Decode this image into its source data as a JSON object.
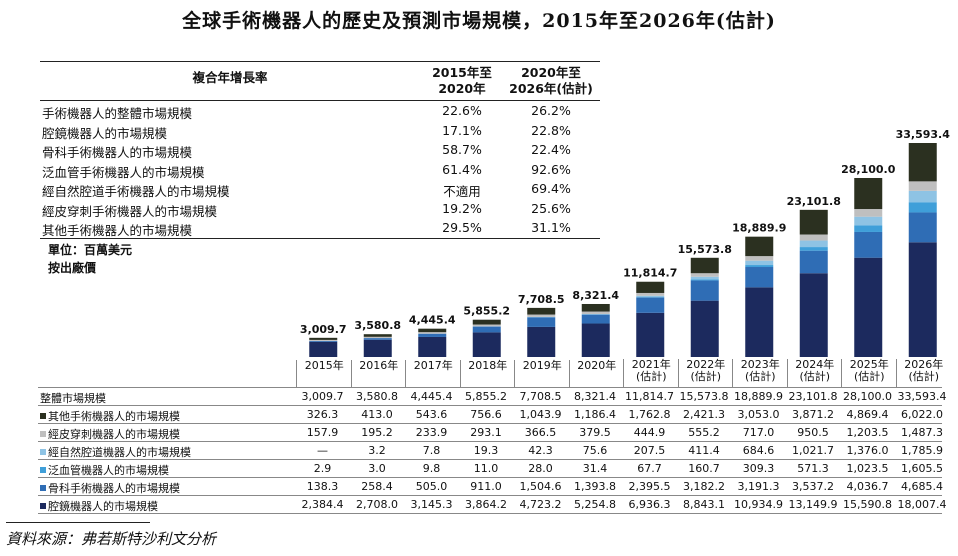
{
  "title": "全球手術機器人的歷史及預測市場規模，2015年至2026年(估計)",
  "cagr": {
    "header": "複合年增長率",
    "col1": [
      "2015年至",
      "2020年"
    ],
    "col2": [
      "2020年至",
      "2026年(估計)"
    ],
    "rows": [
      {
        "name": "手術機器人的整體市場規模",
        "a": "22.6%",
        "b": "26.2%"
      },
      {
        "name": "腔鏡機器人的市場規模",
        "a": "17.1%",
        "b": "22.8%"
      },
      {
        "name": "骨科手術機器人的市場規模",
        "a": "58.7%",
        "b": "22.4%"
      },
      {
        "name": "泛血管手術機器人的市場規模",
        "a": "61.4%",
        "b": "92.6%"
      },
      {
        "name": "經自然腔道手術機器人的市場規模",
        "a": "不適用",
        "b": "69.4%"
      },
      {
        "name": "經皮穿刺手術機器人的市場規模",
        "a": "19.2%",
        "b": "25.6%"
      },
      {
        "name": "其他手術機器人的市場規模",
        "a": "29.5%",
        "b": "31.1%"
      }
    ]
  },
  "unit": "單位：百萬美元",
  "price_basis": "按出廠價",
  "source": "資料來源：弗若斯特沙利文分析",
  "chart_data": {
    "type": "bar",
    "stacked": true,
    "categories": [
      "2015年",
      "2016年",
      "2017年",
      "2018年",
      "2019年",
      "2020年",
      "2021年(估計)",
      "2022年(估計)",
      "2023年(估計)",
      "2024年(估計)",
      "2025年(估計)",
      "2026年(估計)"
    ],
    "category_lines": [
      [
        "2015年"
      ],
      [
        "2016年"
      ],
      [
        "2017年"
      ],
      [
        "2018年"
      ],
      [
        "2019年"
      ],
      [
        "2020年"
      ],
      [
        "2021年",
        "(估計)"
      ],
      [
        "2022年",
        "(估計)"
      ],
      [
        "2023年",
        "(估計)"
      ],
      [
        "2024年",
        "(估計)"
      ],
      [
        "2025年",
        "(估計)"
      ],
      [
        "2026年",
        "(估計)"
      ]
    ],
    "totals": [
      3009.7,
      3580.8,
      4445.4,
      5855.2,
      7708.5,
      8321.4,
      11814.7,
      15573.8,
      18889.9,
      23101.8,
      28100.0,
      33593.4
    ],
    "total_labels": [
      "3,009.7",
      "3,580.8",
      "4,445.4",
      "5,855.2",
      "7,708.5",
      "8,321.4",
      "11,814.7",
      "15,573.8",
      "18,889.9",
      "23,101.8",
      "28,100.0",
      "33,593.4"
    ],
    "total_row_label": "整體市場規模",
    "series": [
      {
        "name": "腔鏡機器人的市場規模",
        "color": "#1c2a5e",
        "values": [
          2384.4,
          2708.0,
          3145.3,
          3864.2,
          4723.2,
          5254.8,
          6936.3,
          8843.1,
          10934.9,
          13149.9,
          15590.8,
          18007.4
        ],
        "labels": [
          "2,384.4",
          "2,708.0",
          "3,145.3",
          "3,864.2",
          "4,723.2",
          "5,254.8",
          "6,936.3",
          "8,843.1",
          "10,934.9",
          "13,149.9",
          "15,590.8",
          "18,007.4"
        ]
      },
      {
        "name": "骨科手術機器人的市場規模",
        "color": "#2f6db5",
        "values": [
          138.3,
          258.4,
          505.0,
          911.0,
          1504.6,
          1393.8,
          2395.5,
          3182.2,
          3191.3,
          3537.2,
          4036.7,
          4685.4
        ],
        "labels": [
          "138.3",
          "258.4",
          "505.0",
          "911.0",
          "1,504.6",
          "1,393.8",
          "2,395.5",
          "3,182.2",
          "3,191.3",
          "3,537.2",
          "4,036.7",
          "4,685.4"
        ]
      },
      {
        "name": "泛血管機器人的市場規模",
        "color": "#3f9fd9",
        "values": [
          2.9,
          3.0,
          9.8,
          11.0,
          28.0,
          31.4,
          67.7,
          160.7,
          309.3,
          571.3,
          1023.5,
          1605.5
        ],
        "labels": [
          "2.9",
          "3.0",
          "9.8",
          "11.0",
          "28.0",
          "31.4",
          "67.7",
          "160.7",
          "309.3",
          "571.3",
          "1,023.5",
          "1,605.5"
        ]
      },
      {
        "name": "經自然腔道機器人的市場規模",
        "color": "#8ec3e4",
        "values": [
          0,
          3.2,
          7.8,
          19.3,
          42.3,
          75.6,
          207.5,
          411.4,
          684.6,
          1021.7,
          1376.0,
          1785.9
        ],
        "labels": [
          "—",
          "3.2",
          "7.8",
          "19.3",
          "42.3",
          "75.6",
          "207.5",
          "411.4",
          "684.6",
          "1,021.7",
          "1,376.0",
          "1,785.9"
        ]
      },
      {
        "name": "經皮穿刺機器人的市場規模",
        "color": "#bfbfbf",
        "values": [
          157.9,
          195.2,
          233.9,
          293.1,
          366.5,
          379.5,
          444.9,
          555.2,
          717.0,
          950.5,
          1203.5,
          1487.3
        ],
        "labels": [
          "157.9",
          "195.2",
          "233.9",
          "293.1",
          "366.5",
          "379.5",
          "444.9",
          "555.2",
          "717.0",
          "950.5",
          "1,203.5",
          "1,487.3"
        ]
      },
      {
        "name": "其他手術機器人的市場規模",
        "color": "#2b3020",
        "values": [
          326.3,
          413.0,
          543.6,
          756.6,
          1043.9,
          1186.4,
          1762.8,
          2421.3,
          3053.0,
          3871.2,
          4869.4,
          6022.0
        ],
        "labels": [
          "326.3",
          "413.0",
          "543.6",
          "756.6",
          "1,043.9",
          "1,186.4",
          "1,762.8",
          "2,421.3",
          "3,053.0",
          "3,871.2",
          "4,869.4",
          "6,022.0"
        ]
      }
    ],
    "table_row_order": [
      5,
      4,
      3,
      2,
      1,
      0
    ]
  }
}
